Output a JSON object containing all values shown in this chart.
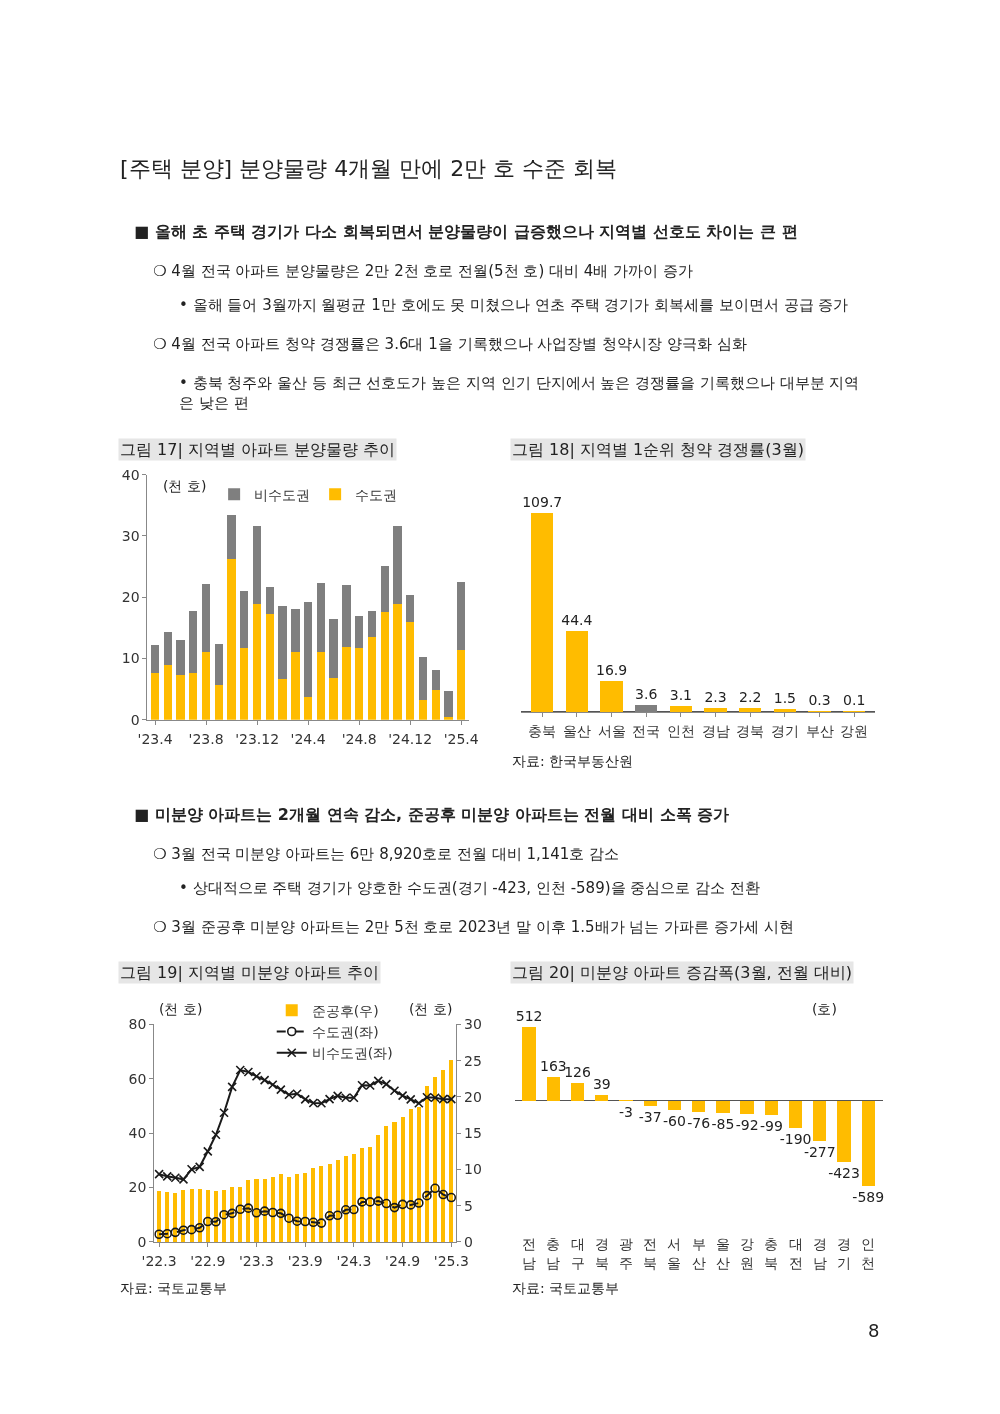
{
  "chart_data": [
    {
      "type": "other",
      "title": "[주택 분양] 분양물량 4개월 만에 2만 호 수준 회복",
      "annotations": [
        "■ 올해 초 주택 경기가 다소 회복되면서 분양물량이 급증했으나 지역별 선호도 차이는 큰 편",
        "❍ 4월 전국 아파트 분양물량은 2만 2천 호로 전월(5천 호) 대비 4배 가까이 증가",
        "• 올해 들어 3월까지 월평균 1만 호에도 못 미쳤으나 연초 주택 경기가 회복세를 보이면서 공급 증가",
        "❍ 4월 전국 아파트 청약 경쟁률은 3.6대 1을 기록했으나 사업장별 청약시장 양극화 심화",
        "• 충북 청주와 울산 등 최근 선호도가 높은 지역 인기 단지에서 높은 경쟁률을 기록했으나 대부분 지역\n은 낮은 편",
        "■ 미분양 아파트는 2개월 연속 감소, 준공후 미분양 아파트는 전월 대비 소폭 증가",
        "❍ 3월 전국 미분양 아파트는 6만 8,920호로 전월 대비 1,141호 감소",
        "• 상대적으로 주택 경기가 양호한 수도권(경기 -423, 인천 -589)을 중심으로 감소 전환",
        "❍ 3월 준공후 미분양 아파트는 2만 5천 호로 2023년 말 이후 1.5배가 넘는 가파른 증가세 시현",
        "8"
      ]
    },
    {
      "type": "bar",
      "title": "그림 17| 지역별 아파트 분양물량 추이",
      "stacked": true,
      "legend": "top",
      "categories": [
        "'23.4",
        null,
        null,
        null,
        "'23.8",
        null,
        null,
        null,
        "'23.12",
        null,
        null,
        null,
        "'24.4",
        null,
        null,
        null,
        "'24.8",
        null,
        null,
        null,
        "'24.12",
        null,
        null,
        null,
        "'25.4"
      ],
      "series": [
        {
          "name": "수도권",
          "color": "#ffbc00",
          "values": [
            7.6,
            9.0,
            7.3,
            7.7,
            11.0,
            5.7,
            26.2,
            11.7,
            18.9,
            17.3,
            6.7,
            11.0,
            3.8,
            11.1,
            6.9,
            11.9,
            11.8,
            13.5,
            17.6,
            18.9,
            16.0,
            3.3,
            4.8,
            0.5,
            11.4
          ]
        },
        {
          "name": "비수도권",
          "color": "#7f7f7f",
          "values": [
            4.6,
            5.4,
            5.8,
            10.0,
            11.1,
            6.7,
            7.2,
            9.4,
            12.7,
            4.3,
            11.9,
            7.1,
            15.4,
            11.3,
            9.5,
            10.1,
            5.2,
            4.2,
            7.5,
            12.7,
            4.4,
            7.0,
            3.3,
            4.2,
            11.1
          ]
        }
      ],
      "ylim": [
        0,
        40
      ],
      "yticks": [
        0,
        10,
        20,
        30,
        40
      ],
      "annotations": [
        "(천 호)"
      ]
    },
    {
      "type": "bar",
      "title": "그림 18| 지역별 1순위 청약 경쟁률(3월)",
      "data_labels": true,
      "categories": [
        "충북",
        "울산",
        "서울",
        "전국",
        "인천",
        "경남",
        "경북",
        "경기",
        "부산",
        "강원"
      ],
      "values": [
        109.7,
        44.4,
        16.9,
        3.6,
        3.1,
        2.3,
        2.2,
        1.5,
        0.3,
        0.1
      ],
      "colors": [
        "#ffbc00",
        "#ffbc00",
        "#ffbc00",
        "#7f7f7f",
        "#ffbc00",
        "#ffbc00",
        "#ffbc00",
        "#ffbc00",
        "#ffbc00",
        "#ffbc00"
      ],
      "annotations": [
        "자료: 한국부동산원"
      ]
    },
    {
      "type": "line",
      "title": "그림 19| 지역별 미분양 아파트 추이",
      "legend": "top right",
      "categories": [
        "'22.3",
        null,
        null,
        null,
        null,
        null,
        "'22.9",
        null,
        null,
        null,
        null,
        null,
        "'23.3",
        null,
        null,
        null,
        null,
        null,
        "'23.9",
        null,
        null,
        null,
        null,
        null,
        "'24.3",
        null,
        null,
        null,
        null,
        null,
        "'24.9",
        null,
        null,
        null,
        null,
        null,
        "'25.3"
      ],
      "series": [
        {
          "name": "준공후(우)",
          "type": "bar",
          "axis": "y2",
          "color": "#ffbc00",
          "values": [
            7.0,
            6.9,
            6.8,
            7.1,
            7.3,
            7.3,
            7.1,
            7.0,
            7.1,
            7.5,
            7.5,
            8.6,
            8.7,
            8.7,
            8.9,
            9.3,
            9.0,
            9.3,
            9.5,
            10.2,
            10.4,
            10.8,
            11.3,
            11.8,
            12.1,
            12.9,
            13.1,
            14.8,
            16.0,
            16.5,
            17.2,
            18.3,
            18.6,
            21.5,
            22.8,
            23.7,
            25.1
          ]
        },
        {
          "name": "수도권(좌)",
          "type": "line",
          "color": "#1a1a1a",
          "marker": "circle",
          "line_style": "dashed",
          "values": [
            2.8,
            3.0,
            3.5,
            4.3,
            4.5,
            5.2,
            7.5,
            7.4,
            10.0,
            10.5,
            12.0,
            12.4,
            10.7,
            11.3,
            10.8,
            10.5,
            8.7,
            7.6,
            7.5,
            7.2,
            6.9,
            9.6,
            9.8,
            11.8,
            11.9,
            14.7,
            14.7,
            15.0,
            14.1,
            12.6,
            13.8,
            13.6,
            14.3,
            17.0,
            19.7,
            17.4,
            16.3
          ]
        },
        {
          "name": "비수도권(좌)",
          "type": "line",
          "color": "#1a1a1a",
          "marker": "cross",
          "line_style": "solid",
          "values": [
            24.9,
            24.1,
            23.6,
            23.0,
            26.7,
            27.6,
            33.3,
            39.4,
            47.5,
            57.0,
            63.2,
            62.5,
            60.9,
            59.5,
            57.8,
            56.0,
            54.1,
            54.5,
            52.4,
            51.1,
            51.0,
            52.5,
            53.7,
            53.0,
            53.0,
            57.6,
            57.5,
            59.2,
            58.0,
            55.6,
            53.8,
            52.4,
            51.0,
            53.2,
            53.0,
            52.5,
            52.5
          ]
        }
      ],
      "ylim": [
        0,
        80
      ],
      "yticks": [
        0,
        20,
        40,
        60,
        80
      ],
      "y2lim": [
        0,
        30
      ],
      "y2ticks": [
        0,
        5,
        10,
        15,
        20,
        25,
        30
      ],
      "annotations": [
        "(천 호)",
        "(천 호)",
        "자료: 국토교통부"
      ]
    },
    {
      "type": "bar",
      "title": "그림 20| 미분양 아파트 증감폭(3월, 전월 대비)",
      "data_labels": true,
      "categories": [
        "전남",
        "충남",
        "대구",
        "경북",
        "광주",
        "전북",
        "서울",
        "부산",
        "울산",
        "강원",
        "충북",
        "대전",
        "경남",
        "경기",
        "인천"
      ],
      "values": [
        512,
        163,
        126,
        39,
        -3,
        -37,
        -60,
        -76,
        -85,
        -92,
        -99,
        -190,
        -277,
        -423,
        -589
      ],
      "color": "#ffbc00",
      "annotations": [
        "(호)",
        "자료: 국토교통부"
      ]
    }
  ]
}
